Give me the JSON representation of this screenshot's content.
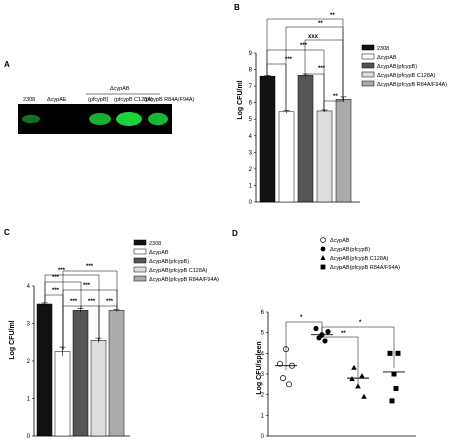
{
  "panels": {
    "A": {
      "letter": "A",
      "header": "ΔcypAB",
      "lanes": [
        "2308",
        "ΔcypAE",
        "(pfcypB)",
        "(pfcypB C128A)",
        "(pfcypB R84A/F94A)"
      ],
      "bands": [
        0.3,
        0.0,
        0.75,
        1.0,
        0.8
      ]
    },
    "B": {
      "letter": "B",
      "ylabel": "Log CFU/ml",
      "ylim": [
        0,
        9
      ],
      "yticks": [
        "0",
        "1",
        "2",
        "3",
        "4",
        "5",
        "6",
        "7",
        "8",
        "9"
      ],
      "legend": [
        "2308",
        "ΔcypAB",
        "ΔcypAB(pfcypB)",
        "ΔcypAB(pfcypB C128A)",
        "ΔcypAB(pfcypB R84A/F94A)"
      ],
      "sig": [
        "***",
        "***",
        "***",
        "**",
        "**",
        "xxx",
        "**"
      ]
    },
    "C": {
      "letter": "C",
      "ylabel": "Log CFU/ml",
      "ylim": [
        0,
        4
      ],
      "yticks": [
        "0",
        "1",
        "2",
        "3",
        "4"
      ],
      "legend": [
        "2308",
        "ΔcypAB",
        "ΔcypAB(pfcypB)",
        "ΔcypAB(pfcypB C128A)",
        "ΔcypAB(pfcypB R84A/F94A)"
      ],
      "sig": [
        "***",
        "***",
        "***",
        "***",
        "***",
        "***",
        "***",
        "***"
      ]
    },
    "D": {
      "letter": "D",
      "ylabel": "Log CFU/spleen",
      "ylim": [
        0,
        6
      ],
      "yticks": [
        "0",
        "1",
        "2",
        "3",
        "4",
        "5",
        "6"
      ],
      "legend": [
        "ΔcypAB",
        "ΔcypAB(pfcypB)",
        "ΔcypAB(pfcypB C128A)",
        "ΔcypAB(pfcypB R84A/F94A)"
      ],
      "sig": [
        "*",
        "**",
        "*"
      ]
    }
  },
  "chart_data": [
    {
      "type": "bar",
      "panel": "B",
      "categories": [
        "2308",
        "ΔcypAB",
        "ΔcypAB(pfcypB)",
        "ΔcypAB(pfcypB C128A)",
        "ΔcypAB(pfcypB R84A/F94A)"
      ],
      "values": [
        7.6,
        5.45,
        7.65,
        5.5,
        6.2
      ],
      "errors": [
        0.05,
        0.08,
        0.08,
        0.06,
        0.15
      ],
      "colors": [
        "#111111",
        "#ffffff",
        "#555555",
        "#dddddd",
        "#aaaaaa"
      ],
      "ylabel": "Log CFU/ml",
      "ylim": [
        0,
        9
      ]
    },
    {
      "type": "bar",
      "panel": "C",
      "categories": [
        "2308",
        "ΔcypAB",
        "ΔcypAB(pfcypB)",
        "ΔcypAB(pfcypB C128A)",
        "ΔcypAB(pfcypB R84A/F94A)"
      ],
      "values": [
        3.52,
        2.25,
        3.35,
        2.55,
        3.35
      ],
      "errors": [
        0.03,
        0.12,
        0.05,
        0.06,
        0.03
      ],
      "colors": [
        "#111111",
        "#ffffff",
        "#555555",
        "#dddddd",
        "#aaaaaa"
      ],
      "ylabel": "Log CFU/ml",
      "ylim": [
        0,
        4
      ]
    },
    {
      "type": "scatter",
      "panel": "D",
      "series": [
        {
          "name": "ΔcypAB",
          "marker": "open-circle",
          "values": [
            4.2,
            3.5,
            3.4,
            2.8,
            2.5
          ],
          "mean": 3.4
        },
        {
          "name": "ΔcypAB(pfcypB)",
          "marker": "filled-circle",
          "values": [
            5.2,
            5.05,
            4.9,
            4.75,
            4.6
          ],
          "mean": 4.9
        },
        {
          "name": "ΔcypAB(pfcypB C128A)",
          "marker": "filled-triangle",
          "values": [
            3.3,
            2.9,
            2.75,
            2.4,
            1.9
          ],
          "mean": 2.8
        },
        {
          "name": "ΔcypAB(pfcypB R84A/F94A)",
          "marker": "filled-square",
          "values": [
            4.0,
            4.0,
            3.0,
            2.3,
            1.7
          ],
          "mean": 3.1
        }
      ],
      "ylabel": "Log CFU/spleen",
      "ylim": [
        0,
        6
      ]
    }
  ]
}
